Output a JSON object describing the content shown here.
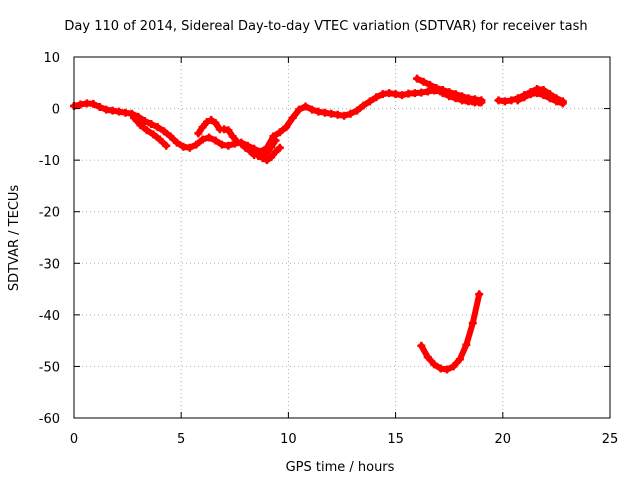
{
  "chart_data": {
    "type": "scatter",
    "title": "Day 110 of 2014, Sidereal Day-to-day VTEC variation (SDTVAR) for receiver tash",
    "xlabel": "GPS time / hours",
    "ylabel": "SDTVAR / TECUs",
    "xlim": [
      0,
      25
    ],
    "ylim": [
      -60,
      10
    ],
    "xticks": [
      0,
      5,
      10,
      15,
      20,
      25
    ],
    "yticks": [
      10,
      0,
      -10,
      -20,
      -30,
      -40,
      -50,
      -60
    ],
    "grid": true,
    "marker_color": "#ff0000",
    "series": [
      {
        "x": [
          0.0,
          0.3,
          0.6,
          0.9,
          1.2,
          1.5,
          1.8,
          2.1,
          2.4,
          2.7,
          3.0,
          3.3,
          3.6,
          3.9,
          4.2,
          4.5,
          4.8,
          5.1,
          5.4,
          5.7,
          6.0,
          6.3,
          6.6,
          6.9,
          7.2,
          7.5,
          7.8,
          8.1,
          8.4,
          8.7,
          9.0,
          9.3,
          9.6,
          9.9,
          10.2,
          10.5,
          10.8,
          11.1,
          11.4,
          11.7,
          12.0,
          12.3,
          12.6,
          12.9,
          13.2,
          13.5,
          13.8,
          14.1,
          14.4,
          14.7,
          15.0,
          15.3,
          15.6,
          15.9,
          16.2,
          16.5,
          16.8,
          17.1,
          17.4,
          17.7,
          18.0,
          18.3,
          18.6,
          18.9
        ],
        "values": [
          0.5,
          0.8,
          1.0,
          0.9,
          0.3,
          -0.2,
          -0.4,
          -0.6,
          -0.8,
          -1.0,
          -1.6,
          -2.4,
          -3.0,
          -3.6,
          -4.4,
          -5.4,
          -6.6,
          -7.4,
          -7.6,
          -7.0,
          -6.0,
          -5.6,
          -6.2,
          -7.0,
          -7.2,
          -6.8,
          -6.6,
          -7.2,
          -7.8,
          -8.4,
          -7.6,
          -5.4,
          -4.6,
          -3.6,
          -1.8,
          -0.2,
          0.4,
          -0.2,
          -0.6,
          -0.8,
          -1.0,
          -1.2,
          -1.4,
          -1.0,
          -0.4,
          0.6,
          1.4,
          2.2,
          2.8,
          3.0,
          2.8,
          2.6,
          2.9,
          3.0,
          3.1,
          3.3,
          3.5,
          3.3,
          3.0,
          2.6,
          2.0,
          1.6,
          1.4,
          1.2
        ]
      },
      {
        "x": [
          2.8,
          3.1,
          3.4,
          3.7,
          4.0,
          4.3
        ],
        "values": [
          -1.8,
          -3.2,
          -4.2,
          -5.0,
          -6.0,
          -7.2
        ]
      },
      {
        "x": [
          5.8,
          6.0,
          6.2,
          6.4,
          6.6,
          6.8
        ],
        "values": [
          -4.8,
          -3.6,
          -2.6,
          -2.2,
          -2.8,
          -4.0
        ]
      },
      {
        "x": [
          7.0,
          7.2,
          7.4,
          7.6,
          7.8,
          8.0,
          8.2,
          8.4,
          8.6,
          8.8,
          9.0,
          9.2,
          9.4
        ],
        "values": [
          -4.0,
          -4.2,
          -5.4,
          -6.4,
          -6.8,
          -7.6,
          -8.2,
          -9.0,
          -8.4,
          -9.2,
          -8.6,
          -7.4,
          -6.2
        ]
      },
      {
        "x": [
          8.6,
          8.8,
          9.0,
          9.2,
          9.4,
          9.6
        ],
        "values": [
          -9.2,
          -9.6,
          -10.0,
          -9.4,
          -8.4,
          -7.6
        ]
      },
      {
        "x": [
          16.0,
          16.3,
          16.6,
          16.9,
          17.2,
          17.5,
          17.8,
          18.1,
          18.4,
          18.7,
          19.0
        ],
        "values": [
          5.8,
          5.2,
          4.6,
          4.0,
          3.6,
          3.2,
          2.8,
          2.4,
          2.0,
          1.8,
          1.6
        ]
      },
      {
        "x": [
          16.9,
          17.2,
          17.5,
          17.8,
          18.1,
          18.4,
          18.7,
          19.0
        ],
        "values": [
          3.6,
          3.0,
          2.4,
          2.0,
          1.6,
          1.4,
          1.2,
          1.2
        ]
      },
      {
        "x": [
          19.8,
          20.1,
          20.4,
          20.7,
          21.0,
          21.3,
          21.6,
          21.9,
          22.2,
          22.5,
          22.8
        ],
        "values": [
          1.6,
          1.4,
          1.6,
          2.0,
          2.6,
          3.2,
          3.8,
          3.6,
          2.8,
          2.0,
          1.4
        ]
      },
      {
        "x": [
          20.7,
          21.0,
          21.3,
          21.6,
          21.9,
          22.2,
          22.5,
          22.8
        ],
        "values": [
          1.6,
          2.2,
          2.8,
          3.0,
          2.6,
          2.0,
          1.4,
          1.0
        ]
      },
      {
        "x": [
          16.2,
          16.5,
          16.8,
          17.1,
          17.4,
          17.7,
          18.0,
          18.3,
          18.6,
          18.9
        ],
        "values": [
          -46.0,
          -48.2,
          -49.6,
          -50.4,
          -50.6,
          -50.0,
          -48.6,
          -45.8,
          -41.6,
          -36.0
        ]
      }
    ]
  }
}
